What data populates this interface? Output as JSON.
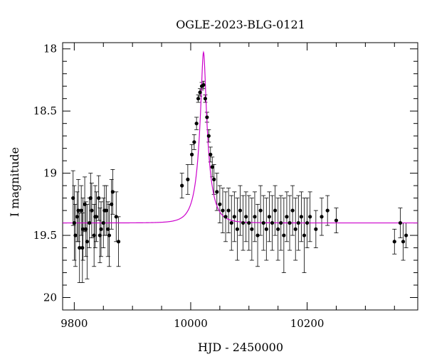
{
  "chart_data": {
    "type": "scatter",
    "title": "OGLE-2023-BLG-0121",
    "xlabel": "HJD - 2450000",
    "ylabel": "I magnitude",
    "xlim": [
      9780,
      10390
    ],
    "ylim": [
      17.95,
      20.1
    ],
    "y_inverted": true,
    "x_ticks": [
      9800,
      10000,
      10200
    ],
    "y_ticks": [
      18,
      18.5,
      19,
      19.5,
      20
    ],
    "model_color": "#cc00cc",
    "point_color": "#000000",
    "model": {
      "name": "",
      "t0": 10022,
      "u0": 0.18,
      "tE": 20,
      "baseline_mag": 19.4,
      "blend_fraction": 0.55
    },
    "series": [
      {
        "name": "",
        "x": [
          9798,
          9802,
          9805,
          9809,
          9812,
          9815,
          9818,
          9822,
          9826,
          9830,
          9834,
          9838,
          9842,
          9846,
          9850,
          9855,
          9860,
          9866,
          9872,
          9876,
          9800,
          9807,
          9814,
          9820,
          9828,
          9836,
          9844,
          9852,
          9858,
          9864,
          9985,
          9995,
          10002,
          10006,
          10010,
          10013,
          10016,
          10019,
          10022,
          10025,
          10028,
          10031,
          10034,
          10037,
          10040,
          10045,
          10050,
          10055,
          10060,
          10065,
          10070,
          10075,
          10080,
          10085,
          10090,
          10095,
          10100,
          10105,
          10110,
          10115,
          10120,
          10125,
          10130,
          10135,
          10140,
          10145,
          10150,
          10155,
          10160,
          10165,
          10170,
          10175,
          10180,
          10185,
          10190,
          10195,
          10200,
          10205,
          10215,
          10225,
          10235,
          10250,
          10350,
          10360,
          10365,
          10370
        ],
        "y": [
          19.2,
          19.5,
          19.35,
          19.6,
          19.3,
          19.45,
          19.25,
          19.55,
          19.4,
          19.3,
          19.5,
          19.35,
          19.2,
          19.45,
          19.4,
          19.3,
          19.5,
          19.15,
          19.35,
          19.55,
          19.4,
          19.3,
          19.6,
          19.45,
          19.2,
          19.35,
          19.5,
          19.3,
          19.45,
          19.25,
          19.1,
          19.05,
          18.85,
          18.75,
          18.6,
          18.4,
          18.35,
          18.3,
          18.29,
          18.4,
          18.55,
          18.7,
          18.85,
          18.95,
          19.05,
          19.15,
          19.25,
          19.3,
          19.35,
          19.3,
          19.4,
          19.35,
          19.45,
          19.3,
          19.4,
          19.35,
          19.4,
          19.45,
          19.35,
          19.5,
          19.3,
          19.4,
          19.45,
          19.35,
          19.4,
          19.3,
          19.45,
          19.4,
          19.5,
          19.35,
          19.4,
          19.3,
          19.45,
          19.4,
          19.35,
          19.5,
          19.4,
          19.35,
          19.45,
          19.35,
          19.3,
          19.38,
          19.55,
          19.4,
          19.55,
          19.5
        ],
        "err": [
          0.22,
          0.25,
          0.2,
          0.28,
          0.2,
          0.25,
          0.22,
          0.3,
          0.2,
          0.22,
          0.25,
          0.2,
          0.18,
          0.22,
          0.2,
          0.2,
          0.25,
          0.18,
          0.2,
          0.2,
          0.3,
          0.25,
          0.28,
          0.22,
          0.2,
          0.25,
          0.22,
          0.2,
          0.22,
          0.2,
          0.1,
          0.12,
          0.08,
          0.06,
          0.05,
          0.03,
          0.03,
          0.03,
          0.03,
          0.03,
          0.04,
          0.05,
          0.06,
          0.08,
          0.12,
          0.15,
          0.15,
          0.18,
          0.2,
          0.18,
          0.22,
          0.2,
          0.25,
          0.2,
          0.22,
          0.2,
          0.22,
          0.25,
          0.2,
          0.25,
          0.2,
          0.22,
          0.25,
          0.2,
          0.22,
          0.2,
          0.25,
          0.22,
          0.3,
          0.2,
          0.22,
          0.2,
          0.25,
          0.22,
          0.2,
          0.3,
          0.2,
          0.2,
          0.15,
          0.15,
          0.12,
          0.1,
          0.1,
          0.12,
          0.15,
          0.1
        ]
      }
    ]
  }
}
